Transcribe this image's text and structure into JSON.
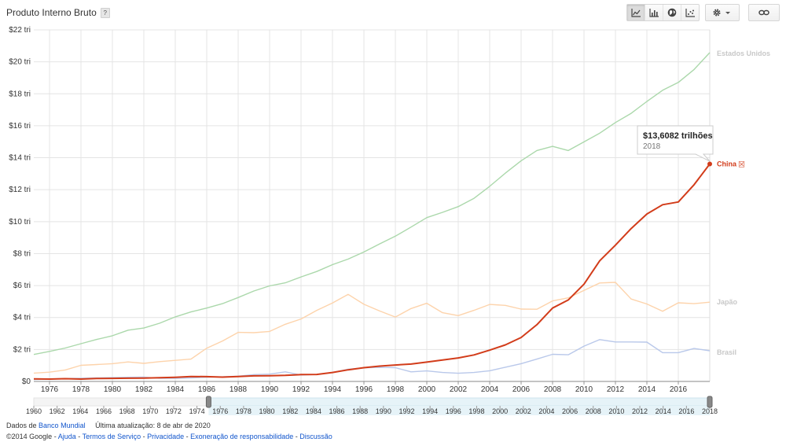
{
  "header": {
    "title": "Produto Interno Bruto",
    "help_label": "?"
  },
  "toolbar": {
    "chart_type_icons": [
      "line-chart-icon",
      "bar-chart-icon",
      "globe-map-icon",
      "scatter-chart-icon"
    ],
    "active_chart_type": "line-chart-icon",
    "settings_icon": "gear-icon",
    "link_icon": "link-icon"
  },
  "tooltip": {
    "value": "$13,6082 trilhões",
    "year": "2018"
  },
  "footer": {
    "source_prefix": "Dados de",
    "source_link": "Banco Mundial",
    "last_update": "Última atualização: 8 de abr de 2020",
    "copyright": "©2014 Google",
    "links": [
      "Ajuda",
      "Termos de Serviço",
      "Privacidade",
      "Exoneração de responsabilidade",
      "Discussão"
    ],
    "separator": " - "
  },
  "colors": {
    "china": "#d23c1a",
    "usa": "#abd8ab",
    "japan": "#fdd3ab",
    "brazil": "#b9c8ea",
    "grid": "#e4e4e4",
    "label_faded": "#c8c8c8",
    "timeline_fill": "#e6f3f8"
  },
  "chart_data": {
    "type": "line",
    "title": "Produto Interno Bruto",
    "x_ticks": [
      1976,
      1978,
      1980,
      1982,
      1984,
      1986,
      1988,
      1990,
      1992,
      1994,
      1996,
      1998,
      2000,
      2002,
      2004,
      2006,
      2008,
      2010,
      2012,
      2014,
      2016
    ],
    "y_ticks": [
      0,
      2,
      4,
      6,
      8,
      10,
      12,
      14,
      16,
      18,
      20,
      22
    ],
    "y_tick_labels": [
      "$0",
      "$2 tri",
      "$4 tri",
      "$6 tri",
      "$8 tri",
      "$10 tri",
      "$12 tri",
      "$14 tri",
      "$16 tri",
      "$18 tri",
      "$20 tri",
      "$22 tri"
    ],
    "xlim": [
      1975,
      2018
    ],
    "ylim": [
      0,
      22
    ],
    "grid": true,
    "highlighted_series": "China",
    "highlight_marker": "☒",
    "series": [
      {
        "name": "China",
        "color": "#d23c1a",
        "x": [
          1975,
          1976,
          1977,
          1978,
          1979,
          1980,
          1981,
          1982,
          1983,
          1984,
          1985,
          1986,
          1987,
          1988,
          1989,
          1990,
          1991,
          1992,
          1993,
          1994,
          1995,
          1996,
          1997,
          1998,
          1999,
          2000,
          2001,
          2002,
          2003,
          2004,
          2005,
          2006,
          2007,
          2008,
          2009,
          2010,
          2011,
          2012,
          2013,
          2014,
          2015,
          2016,
          2017,
          2018
        ],
        "values": [
          0.16,
          0.15,
          0.17,
          0.15,
          0.18,
          0.19,
          0.2,
          0.21,
          0.23,
          0.26,
          0.31,
          0.3,
          0.27,
          0.31,
          0.35,
          0.36,
          0.38,
          0.43,
          0.44,
          0.56,
          0.73,
          0.86,
          0.96,
          1.03,
          1.09,
          1.21,
          1.34,
          1.47,
          1.66,
          1.96,
          2.29,
          2.75,
          3.55,
          4.59,
          5.1,
          6.09,
          7.55,
          8.53,
          9.57,
          10.48,
          11.06,
          11.23,
          12.31,
          13.61
        ]
      },
      {
        "name": "Estados Unidos",
        "color": "#abd8ab",
        "x": [
          1975,
          1976,
          1977,
          1978,
          1979,
          1980,
          1981,
          1982,
          1983,
          1984,
          1985,
          1986,
          1987,
          1988,
          1989,
          1990,
          1991,
          1992,
          1993,
          1994,
          1995,
          1996,
          1997,
          1998,
          1999,
          2000,
          2001,
          2002,
          2003,
          2004,
          2005,
          2006,
          2007,
          2008,
          2009,
          2010,
          2011,
          2012,
          2013,
          2014,
          2015,
          2016,
          2017,
          2018
        ],
        "values": [
          1.69,
          1.88,
          2.09,
          2.36,
          2.63,
          2.86,
          3.21,
          3.34,
          3.64,
          4.04,
          4.35,
          4.59,
          4.87,
          5.25,
          5.66,
          5.98,
          6.17,
          6.54,
          6.88,
          7.31,
          7.66,
          8.1,
          8.61,
          9.09,
          9.66,
          10.25,
          10.58,
          10.94,
          11.46,
          12.21,
          13.04,
          13.81,
          14.45,
          14.71,
          14.45,
          14.99,
          15.54,
          16.2,
          16.78,
          17.52,
          18.22,
          18.71,
          19.52,
          20.58
        ]
      },
      {
        "name": "Japão",
        "color": "#fdd3ab",
        "x": [
          1975,
          1976,
          1977,
          1978,
          1979,
          1980,
          1981,
          1982,
          1983,
          1984,
          1985,
          1986,
          1987,
          1988,
          1989,
          1990,
          1991,
          1992,
          1993,
          1994,
          1995,
          1996,
          1997,
          1998,
          1999,
          2000,
          2001,
          2002,
          2003,
          2004,
          2005,
          2006,
          2007,
          2008,
          2009,
          2010,
          2011,
          2012,
          2013,
          2014,
          2015,
          2016,
          2017,
          2018
        ],
        "values": [
          0.52,
          0.58,
          0.72,
          1.01,
          1.06,
          1.11,
          1.22,
          1.13,
          1.24,
          1.32,
          1.4,
          2.08,
          2.53,
          3.07,
          3.05,
          3.13,
          3.58,
          3.91,
          4.45,
          4.91,
          5.45,
          4.83,
          4.41,
          4.03,
          4.56,
          4.89,
          4.3,
          4.12,
          4.45,
          4.82,
          4.76,
          4.53,
          4.52,
          5.04,
          5.23,
          5.7,
          6.16,
          6.2,
          5.16,
          4.85,
          4.39,
          4.92,
          4.87,
          4.96
        ]
      },
      {
        "name": "Brasil",
        "color": "#b9c8ea",
        "x": [
          1975,
          1976,
          1977,
          1978,
          1979,
          1980,
          1981,
          1982,
          1983,
          1984,
          1985,
          1986,
          1987,
          1988,
          1989,
          1990,
          1991,
          1992,
          1993,
          1994,
          1995,
          1996,
          1997,
          1998,
          1999,
          2000,
          2001,
          2002,
          2003,
          2004,
          2005,
          2006,
          2007,
          2008,
          2009,
          2010,
          2011,
          2012,
          2013,
          2014,
          2015,
          2016,
          2017,
          2018
        ],
        "values": [
          0.12,
          0.15,
          0.18,
          0.2,
          0.22,
          0.24,
          0.26,
          0.27,
          0.19,
          0.19,
          0.22,
          0.26,
          0.29,
          0.33,
          0.43,
          0.46,
          0.6,
          0.4,
          0.44,
          0.56,
          0.77,
          0.85,
          0.88,
          0.86,
          0.6,
          0.66,
          0.56,
          0.51,
          0.56,
          0.67,
          0.89,
          1.11,
          1.4,
          1.7,
          1.67,
          2.21,
          2.62,
          2.47,
          2.47,
          2.46,
          1.8,
          1.8,
          2.06,
          1.92
        ]
      }
    ],
    "tooltip_point": {
      "series": "China",
      "x": 2018,
      "y": 13.6082
    },
    "timeline": {
      "range": [
        1960,
        2018
      ],
      "selected": [
        1975,
        2018
      ],
      "labels": [
        1960,
        1962,
        1964,
        1966,
        1968,
        1970,
        1972,
        1974,
        1976,
        1978,
        1980,
        1982,
        1984,
        1986,
        1988,
        1990,
        1992,
        1994,
        1996,
        1998,
        2000,
        2002,
        2004,
        2006,
        2008,
        2010,
        2012,
        2014,
        2016,
        2018
      ]
    }
  }
}
